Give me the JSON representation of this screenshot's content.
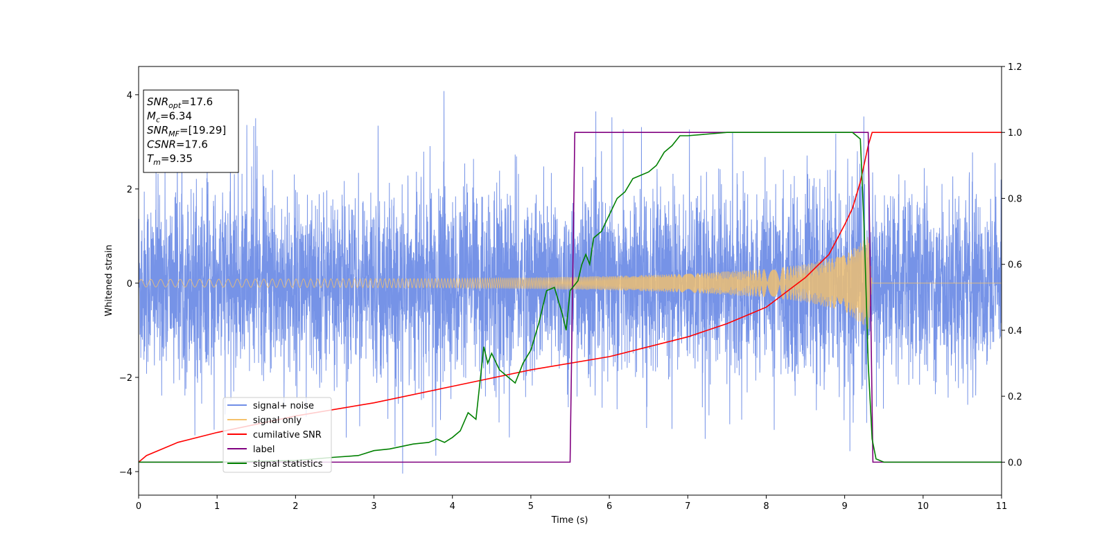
{
  "chart_data": {
    "type": "line",
    "title": "",
    "xlabel": "Time (s)",
    "ylabel": "Whitened strain",
    "y2label": "",
    "xlim": [
      0,
      11
    ],
    "ylim": [
      -4.5,
      4.6
    ],
    "y2lim": [
      -0.1,
      1.2
    ],
    "xticks": [
      "0",
      "1",
      "2",
      "3",
      "4",
      "5",
      "6",
      "7",
      "8",
      "9",
      "10",
      "11"
    ],
    "yticks": [
      "−4",
      "−2",
      "0",
      "2",
      "4"
    ],
    "y2ticks": [
      "0.0",
      "0.2",
      "0.4",
      "0.6",
      "0.8",
      "1.0",
      "1.2"
    ],
    "grid": false,
    "legend_position": "lower-left",
    "colors": {
      "signal_noise": "#6f8de6",
      "signal_only": "#f5c26b",
      "cumulative_snr": "#ff0000",
      "label": "#800080",
      "signal_statistics": "#008000"
    },
    "info_box": [
      {
        "name": "SNR",
        "sub": "opt",
        "value": "=17.6"
      },
      {
        "name": "M",
        "sub": "c",
        "value": "=6.34"
      },
      {
        "name": "SNR",
        "sub": "MF",
        "value": "=[19.29]"
      },
      {
        "name": "CSNR",
        "sub": "",
        "value": "=17.6"
      },
      {
        "name": "T",
        "sub": "m",
        "value": "=9.35"
      }
    ],
    "legend": [
      {
        "label": "signal+ noise",
        "color": "#6f8de6"
      },
      {
        "label": "signal only",
        "color": "#f5c26b"
      },
      {
        "label": "cumilative SNR",
        "color": "#ff0000"
      },
      {
        "label": "label",
        "color": "#800080"
      },
      {
        "label": "signal statistics",
        "color": "#008000"
      }
    ],
    "series": [
      {
        "name": "signal+ noise",
        "axis": "left",
        "description_values": {
          "noise_std": 0.95,
          "spike_max": 4.2,
          "spike_min": -4.1,
          "t_start": 0,
          "t_end": 11
        }
      },
      {
        "name": "signal only",
        "axis": "left",
        "envelope": {
          "t": [
            0,
            2,
            4,
            5,
            6,
            7,
            8,
            8.5,
            9,
            9.2,
            9.3,
            9.35
          ],
          "amp": [
            0.08,
            0.09,
            0.1,
            0.12,
            0.15,
            0.2,
            0.3,
            0.4,
            0.6,
            0.85,
            1.0,
            0.0
          ]
        }
      },
      {
        "name": "cumilative SNR",
        "axis": "right",
        "x": [
          0,
          0.1,
          0.5,
          1,
          2,
          3,
          4,
          5,
          6,
          7,
          7.5,
          8,
          8.5,
          8.8,
          9.0,
          9.1,
          9.2,
          9.3,
          9.35,
          11
        ],
        "y": [
          0.0,
          0.02,
          0.06,
          0.09,
          0.14,
          0.18,
          0.23,
          0.28,
          0.32,
          0.38,
          0.42,
          0.47,
          0.56,
          0.63,
          0.72,
          0.77,
          0.85,
          0.96,
          1.0,
          1.0
        ]
      },
      {
        "name": "label",
        "axis": "right",
        "x": [
          0,
          5.5,
          5.56,
          9.3,
          9.36,
          11
        ],
        "y": [
          0,
          0,
          1,
          1,
          0,
          0
        ]
      },
      {
        "name": "signal statistics",
        "axis": "right",
        "x": [
          0,
          1,
          2,
          2.5,
          2.8,
          3.0,
          3.2,
          3.5,
          3.7,
          3.8,
          3.9,
          4.0,
          4.1,
          4.2,
          4.3,
          4.4,
          4.45,
          4.5,
          4.6,
          4.7,
          4.8,
          4.9,
          5.0,
          5.1,
          5.2,
          5.3,
          5.4,
          5.45,
          5.5,
          5.6,
          5.65,
          5.7,
          5.75,
          5.8,
          5.9,
          6.0,
          6.1,
          6.2,
          6.3,
          6.4,
          6.5,
          6.6,
          6.7,
          6.8,
          6.9,
          7.0,
          7.5,
          8.0,
          8.5,
          9.0,
          9.1,
          9.2,
          9.25,
          9.3,
          9.35,
          9.4,
          9.5,
          10,
          11
        ],
        "y": [
          0.0,
          0.0,
          0.005,
          0.015,
          0.02,
          0.035,
          0.04,
          0.055,
          0.06,
          0.07,
          0.06,
          0.075,
          0.095,
          0.15,
          0.13,
          0.35,
          0.3,
          0.33,
          0.28,
          0.26,
          0.24,
          0.3,
          0.34,
          0.42,
          0.52,
          0.53,
          0.45,
          0.4,
          0.52,
          0.55,
          0.6,
          0.63,
          0.6,
          0.68,
          0.7,
          0.75,
          0.8,
          0.82,
          0.86,
          0.87,
          0.88,
          0.9,
          0.94,
          0.96,
          0.99,
          0.99,
          1.0,
          1.0,
          1.0,
          1.0,
          1.0,
          0.98,
          0.7,
          0.3,
          0.07,
          0.01,
          0.0,
          0.0,
          0.0
        ]
      }
    ]
  }
}
